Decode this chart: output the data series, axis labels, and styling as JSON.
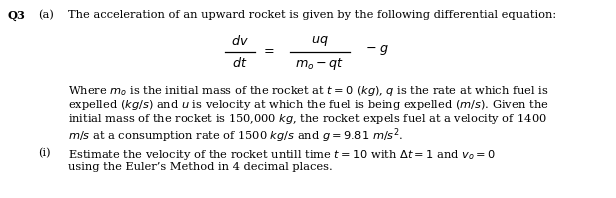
{
  "bg_color": "#ffffff",
  "text_color": "#000000",
  "figsize": [
    6.16,
    1.98
  ],
  "dpi": 100,
  "q3_label": "Q3",
  "a_label": "(a)",
  "title_text": "The acceleration of an upward rocket is given by the following differential equation:",
  "para_line1": "Where $m_o$ is the initial mass of the rocket at $t = 0$ $(kg)$, $q$ is the rate at which fuel is",
  "para_line2": "expelled $(kg/s)$ and $u$ is velocity at which the fuel is being expelled $(m/s)$. Given the",
  "para_line3": "initial mass of the rocket is 150,000 $kg$, the rocket expels fuel at a velocity of 1400",
  "para_line4": "$m/s$ at a consumption rate of 1500 $kg/s$ and $g = 9.81$ $m/s^2$.",
  "item_i_label": "(i)",
  "item_i_line1": "Estimate the velocity of the rocket untill time $t = 10$ with $\\Delta t = 1$ and $v_o = 0$",
  "item_i_line2": "using the Euler’s Method in 4 decimal places.",
  "eq_dv": "dv",
  "eq_dt": "dt",
  "eq_equals": "=",
  "eq_uq": "uq",
  "eq_denom": "$m_o - qt$",
  "eq_minus_g": "$- g$",
  "fs": 8.2
}
